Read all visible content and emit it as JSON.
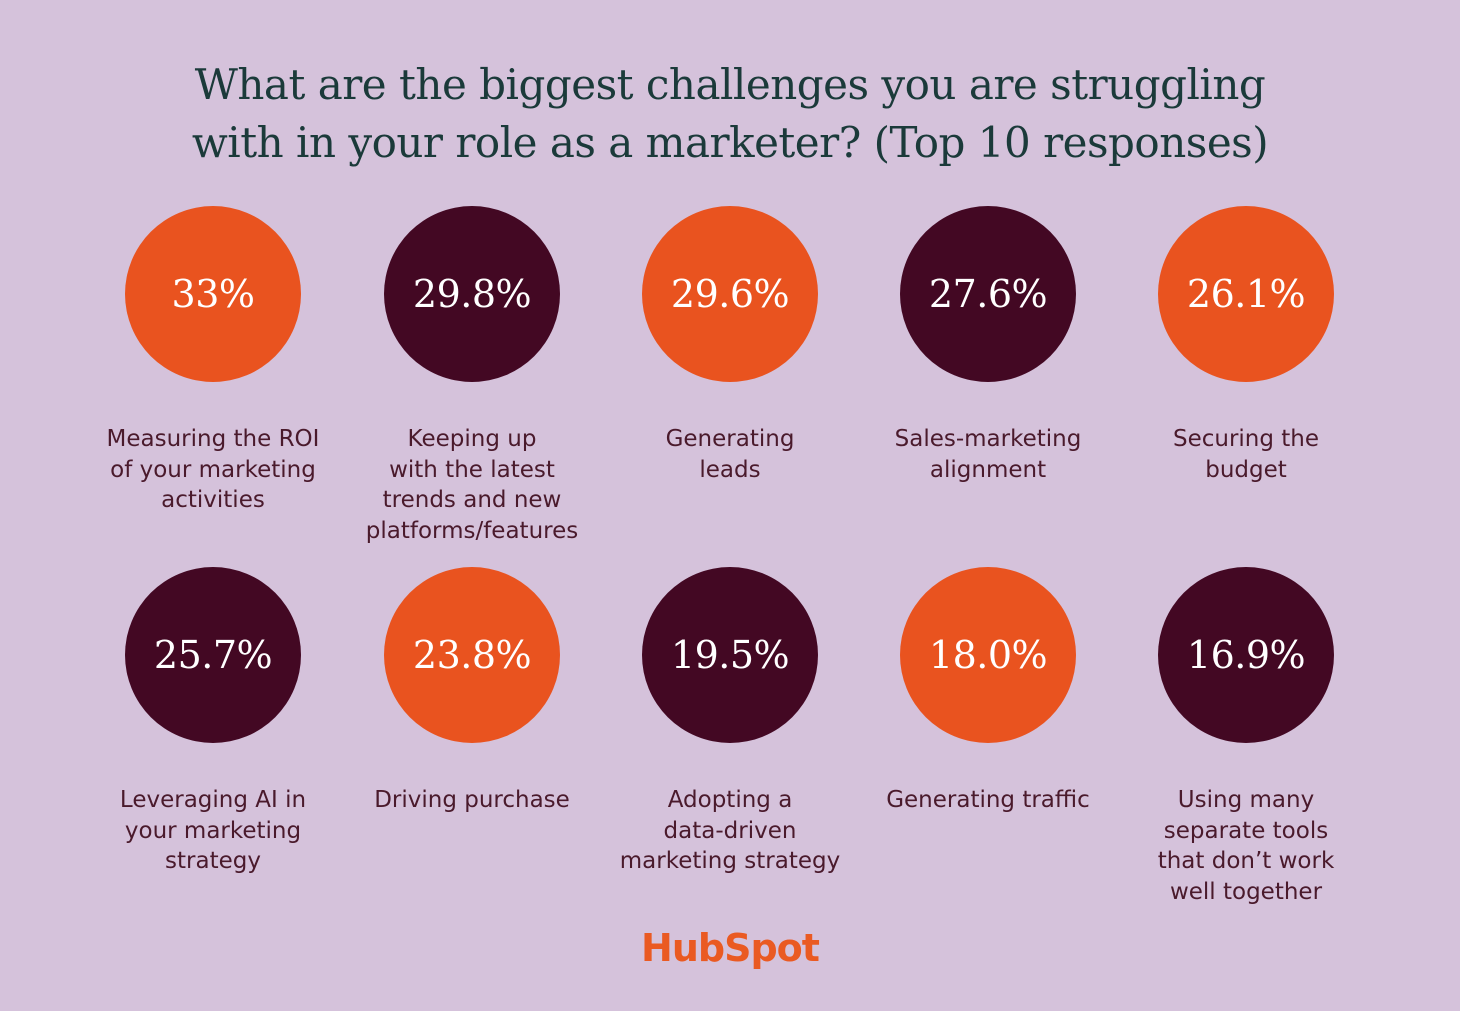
{
  "title_lines": [
    "What are the biggest challenges you are struggling",
    "with in your role as a marketer? (Top 10 responses)"
  ],
  "colors": {
    "background": "#d5c2db",
    "orange": "#e9531f",
    "plum": "#430823",
    "title": "#1b3a3a",
    "label": "#4a1a2c",
    "logo": "#ea5a22"
  },
  "logo_text": "HubSpot",
  "chart_data": {
    "type": "table",
    "title": "What are the biggest challenges you are struggling with in your role as a marketer? (Top 10 responses)",
    "items": [
      {
        "value": "33%",
        "percent": 33.0,
        "color": "orange",
        "label_lines": [
          "Measuring the ROI",
          "of your marketing",
          "activities"
        ]
      },
      {
        "value": "29.8%",
        "percent": 29.8,
        "color": "plum",
        "label_lines": [
          "Keeping up",
          "with the latest",
          "trends and new",
          "platforms/features"
        ]
      },
      {
        "value": "29.6%",
        "percent": 29.6,
        "color": "orange",
        "label_lines": [
          "Generating",
          "leads"
        ]
      },
      {
        "value": "27.6%",
        "percent": 27.6,
        "color": "plum",
        "label_lines": [
          "Sales-marketing",
          "alignment"
        ]
      },
      {
        "value": "26.1%",
        "percent": 26.1,
        "color": "orange",
        "label_lines": [
          "Securing the",
          "budget"
        ]
      },
      {
        "value": "25.7%",
        "percent": 25.7,
        "color": "plum",
        "label_lines": [
          "Leveraging AI in",
          "your marketing",
          "strategy"
        ]
      },
      {
        "value": "23.8%",
        "percent": 23.8,
        "color": "orange",
        "label_lines": [
          "Driving purchase"
        ]
      },
      {
        "value": "19.5%",
        "percent": 19.5,
        "color": "plum",
        "label_lines": [
          "Adopting a",
          "data-driven",
          "marketing strategy"
        ]
      },
      {
        "value": "18.0%",
        "percent": 18.0,
        "color": "orange",
        "label_lines": [
          "Generating traffic"
        ]
      },
      {
        "value": "16.9%",
        "percent": 16.9,
        "color": "plum",
        "label_lines": [
          "Using many",
          "separate tools",
          "that don’t work",
          "well together"
        ]
      }
    ]
  }
}
